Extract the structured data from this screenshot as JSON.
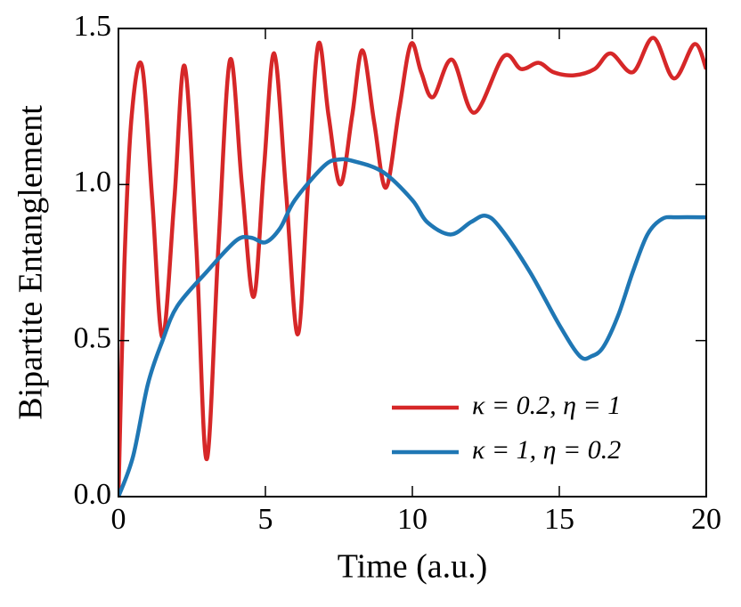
{
  "chart_data": {
    "type": "line",
    "xlabel": "Time (a.u.)",
    "ylabel": "Bipartite Entanglement",
    "xlim": [
      0,
      20
    ],
    "ylim": [
      0,
      1.5
    ],
    "xticks": [
      0,
      5,
      10,
      15,
      20
    ],
    "yticks": [
      {
        "value": 0,
        "label": "0.0"
      },
      0.5,
      {
        "value": 1,
        "label": "1.0"
      },
      1.5
    ],
    "legend": "lower right",
    "series": [
      {
        "name": "κ = 0.2,  η = 1",
        "color": "#d62728",
        "x": [
          0,
          0.2,
          0.45,
          0.8,
          1.15,
          1.5,
          1.9,
          2.25,
          2.65,
          3.0,
          3.4,
          3.8,
          4.2,
          4.6,
          4.95,
          5.3,
          5.7,
          6.1,
          6.45,
          6.8,
          7.15,
          7.55,
          7.95,
          8.3,
          8.7,
          9.1,
          9.55,
          9.95,
          10.3,
          10.7,
          11.35,
          12.1,
          13.1,
          13.7,
          14.3,
          14.8,
          15.5,
          16.2,
          16.75,
          17.5,
          18.2,
          18.9,
          19.6,
          20
        ],
        "values": [
          0,
          0.74,
          1.22,
          1.38,
          0.95,
          0.51,
          0.95,
          1.38,
          0.8,
          0.12,
          0.8,
          1.4,
          1.0,
          0.64,
          1.05,
          1.42,
          0.98,
          0.52,
          1.0,
          1.45,
          1.22,
          1.0,
          1.22,
          1.43,
          1.2,
          0.99,
          1.24,
          1.45,
          1.36,
          1.28,
          1.4,
          1.23,
          1.41,
          1.37,
          1.39,
          1.36,
          1.35,
          1.37,
          1.42,
          1.36,
          1.47,
          1.34,
          1.45,
          1.37
        ]
      },
      {
        "name": "κ = 1,  η = 0.2",
        "color": "#1f77b4",
        "x": [
          0,
          0.5,
          1,
          1.5,
          2,
          3,
          4,
          4.5,
          5,
          5.5,
          6,
          7,
          7.5,
          8,
          9,
          10,
          10.5,
          11.3,
          12,
          12.5,
          13,
          14,
          15,
          15.7,
          16.1,
          16.5,
          17,
          17.5,
          18,
          18.5,
          19,
          20
        ],
        "values": [
          0,
          0.13,
          0.36,
          0.5,
          0.61,
          0.72,
          0.82,
          0.83,
          0.815,
          0.86,
          0.95,
          1.06,
          1.08,
          1.075,
          1.04,
          0.95,
          0.88,
          0.84,
          0.88,
          0.9,
          0.86,
          0.72,
          0.55,
          0.45,
          0.45,
          0.48,
          0.58,
          0.72,
          0.84,
          0.89,
          0.895,
          0.895
        ]
      }
    ]
  }
}
